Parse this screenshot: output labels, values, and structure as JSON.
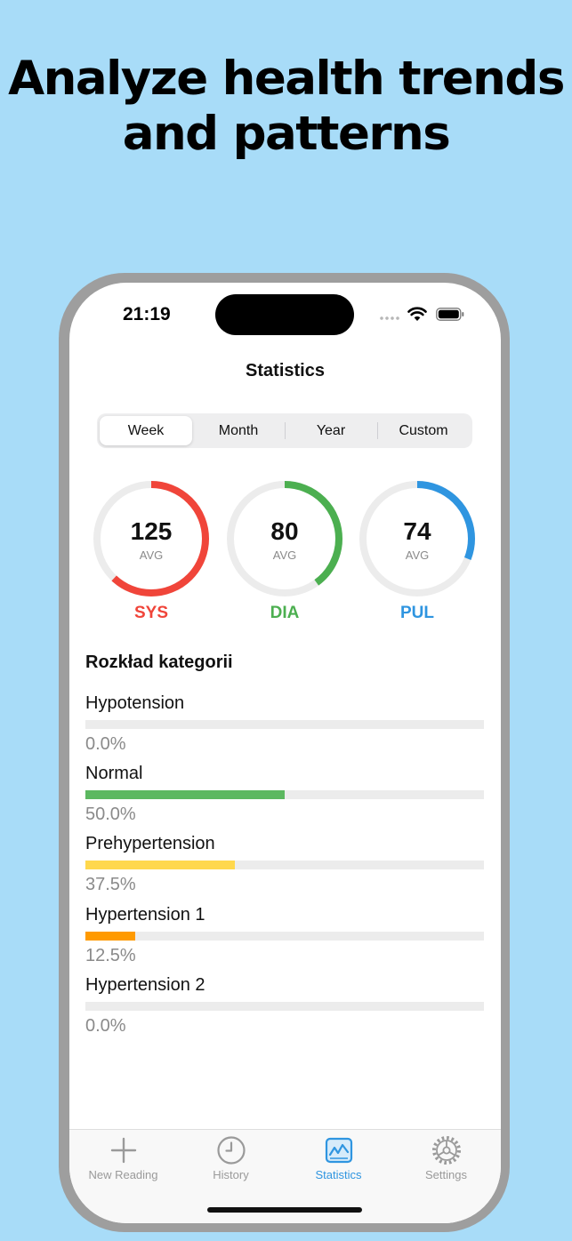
{
  "headline": [
    "Analyze health trends",
    "and patterns"
  ],
  "status_bar": {
    "time": "21:19"
  },
  "nav": {
    "title": "Statistics"
  },
  "segments": [
    {
      "label": "Week",
      "selected": true
    },
    {
      "label": "Month",
      "selected": false
    },
    {
      "label": "Year",
      "selected": false
    },
    {
      "label": "Custom",
      "selected": false
    }
  ],
  "gauges": [
    {
      "value": "125",
      "caption": "AVG",
      "label": "SYS",
      "color": "#f0453a",
      "fraction": 0.62
    },
    {
      "value": "80",
      "caption": "AVG",
      "label": "DIA",
      "color": "#4caf50",
      "fraction": 0.4
    },
    {
      "value": "74",
      "caption": "AVG",
      "label": "PUL",
      "color": "#2f95e0",
      "fraction": 0.31
    }
  ],
  "categories_section": {
    "title": "Rozkład kategorii",
    "items": [
      {
        "name": "Hypotension",
        "percent": "0.0%",
        "fraction": 0.0,
        "color": "#4caf50"
      },
      {
        "name": "Normal",
        "percent": "50.0%",
        "fraction": 0.5,
        "color": "#5cb860"
      },
      {
        "name": "Prehypertension",
        "percent": "37.5%",
        "fraction": 0.375,
        "color": "#ffd84d"
      },
      {
        "name": "Hypertension 1",
        "percent": "12.5%",
        "fraction": 0.125,
        "color": "#ff9a00"
      },
      {
        "name": "Hypertension 2",
        "percent": "0.0%",
        "fraction": 0.0,
        "color": "#f0453a"
      }
    ]
  },
  "tabbar": {
    "items": [
      {
        "label": "New Reading",
        "icon": "plus-icon",
        "active": false
      },
      {
        "label": "History",
        "icon": "clock-icon",
        "active": false
      },
      {
        "label": "Statistics",
        "icon": "chart-icon",
        "active": true
      },
      {
        "label": "Settings",
        "icon": "gear-icon",
        "active": false
      }
    ]
  }
}
